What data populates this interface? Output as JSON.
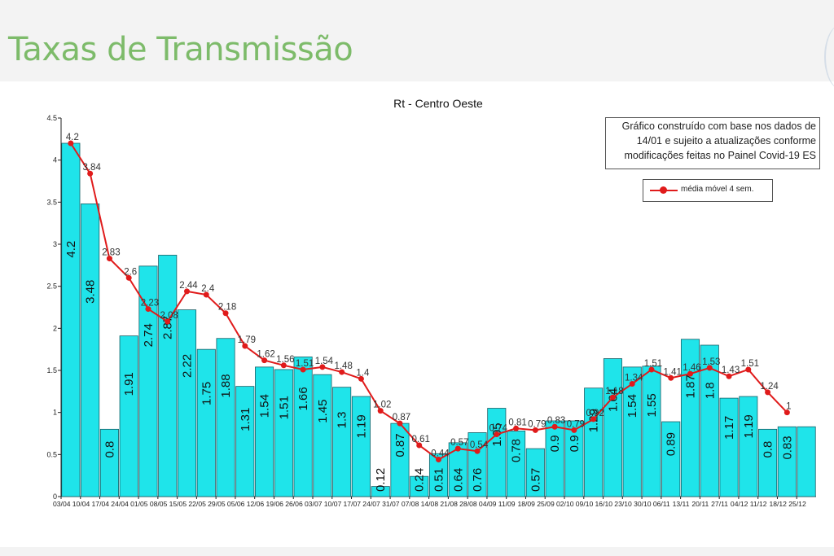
{
  "page": {
    "title": "Taxas de Transmissão"
  },
  "chart_data": {
    "type": "bar",
    "title": "Rt - Centro Oeste",
    "note": [
      "Gráfico construído com base nos dados de",
      "14/01 e sujeito a atualizações conforme",
      "modificações feitas no Painel Covid-19 ES"
    ],
    "legend": {
      "placement": "top-right",
      "entries": [
        "média móvel 4 sem."
      ]
    },
    "categories": [
      "03/04",
      "10/04",
      "17/04",
      "24/04",
      "01/05",
      "08/05",
      "15/05",
      "22/05",
      "29/05",
      "05/06",
      "12/06",
      "19/06",
      "26/06",
      "03/07",
      "10/07",
      "17/07",
      "24/07",
      "31/07",
      "07/08",
      "14/08",
      "21/08",
      "28/08",
      "04/09",
      "11/09",
      "18/09",
      "25/09",
      "02/10",
      "09/10",
      "16/10",
      "23/10",
      "30/10",
      "06/11",
      "13/11",
      "20/11",
      "27/11",
      "04/12",
      "11/12",
      "18/12",
      "25/12"
    ],
    "series": [
      {
        "type": "bar",
        "color": "#1fe4ea",
        "values": [
          4.2,
          3.48,
          0.8,
          1.91,
          2.74,
          2.87,
          2.22,
          1.75,
          1.88,
          1.31,
          1.54,
          1.51,
          1.66,
          1.45,
          1.3,
          1.19,
          0.12,
          0.87,
          0.24,
          0.51,
          0.64,
          0.76,
          1.05,
          0.78,
          0.57,
          0.9,
          0.9,
          1.29,
          1.64,
          1.54,
          1.55,
          0.89,
          1.87,
          1.8,
          1.17,
          1.19,
          0.8,
          0.83,
          0.83
        ],
        "labels": [
          "4.2",
          "3.48",
          "0.8",
          "1.91",
          "2.74",
          "2.87",
          "2.22",
          "1.75",
          "1.88",
          "1.31",
          "1.54",
          "1.51",
          "1.66",
          "1.45",
          "1.3",
          "1.19",
          "0.12",
          "0.87",
          "0.24",
          "0.51",
          "0.64",
          "0.76",
          "1.05",
          "0.78",
          "0.57",
          "0.9",
          "0.9",
          "1.29",
          "1.64",
          "1.54",
          "1.55",
          "0.89",
          "1.87",
          "1.8",
          "1.17",
          "1.19",
          "0.8",
          "0.83",
          ""
        ]
      },
      {
        "type": "line",
        "name": "média móvel 4 sem.",
        "color": "#e01b1b",
        "values": [
          4.2,
          3.84,
          2.83,
          2.6,
          2.23,
          2.08,
          2.44,
          2.4,
          2.18,
          1.79,
          1.62,
          1.56,
          1.51,
          1.54,
          1.48,
          1.4,
          1.02,
          0.87,
          0.61,
          0.44,
          0.57,
          0.54,
          0.74,
          0.81,
          0.79,
          0.83,
          0.79,
          0.92,
          1.18,
          1.34,
          1.51,
          1.41,
          1.46,
          1.53,
          1.43,
          1.51,
          1.24,
          1.0,
          null
        ],
        "labels": [
          "4.2",
          "3.84",
          "2.83",
          "2.6",
          "2.23",
          "2.08",
          "2.44",
          "2.4",
          "2.18",
          "1.79",
          "1.62",
          "1.56",
          "1.51",
          "1.54",
          "1.48",
          "1.4",
          "1.02",
          "0.87",
          "0.61",
          "0.44",
          "0.57",
          "0.54",
          "0.74",
          "0.81",
          "0.79",
          "0.83",
          "0.79",
          "0.92",
          "1.18",
          "1.34",
          "1.51",
          "1.41",
          "1.46",
          "1.53",
          "1.43",
          "1.51",
          "1.24",
          "1",
          ""
        ]
      }
    ],
    "ylim": [
      0,
      4.5
    ],
    "yticks": [
      "0",
      "0.5",
      "1",
      "1.5",
      "2",
      "2.5",
      "3",
      "3.5",
      "4",
      "4.5"
    ],
    "grid": false
  }
}
